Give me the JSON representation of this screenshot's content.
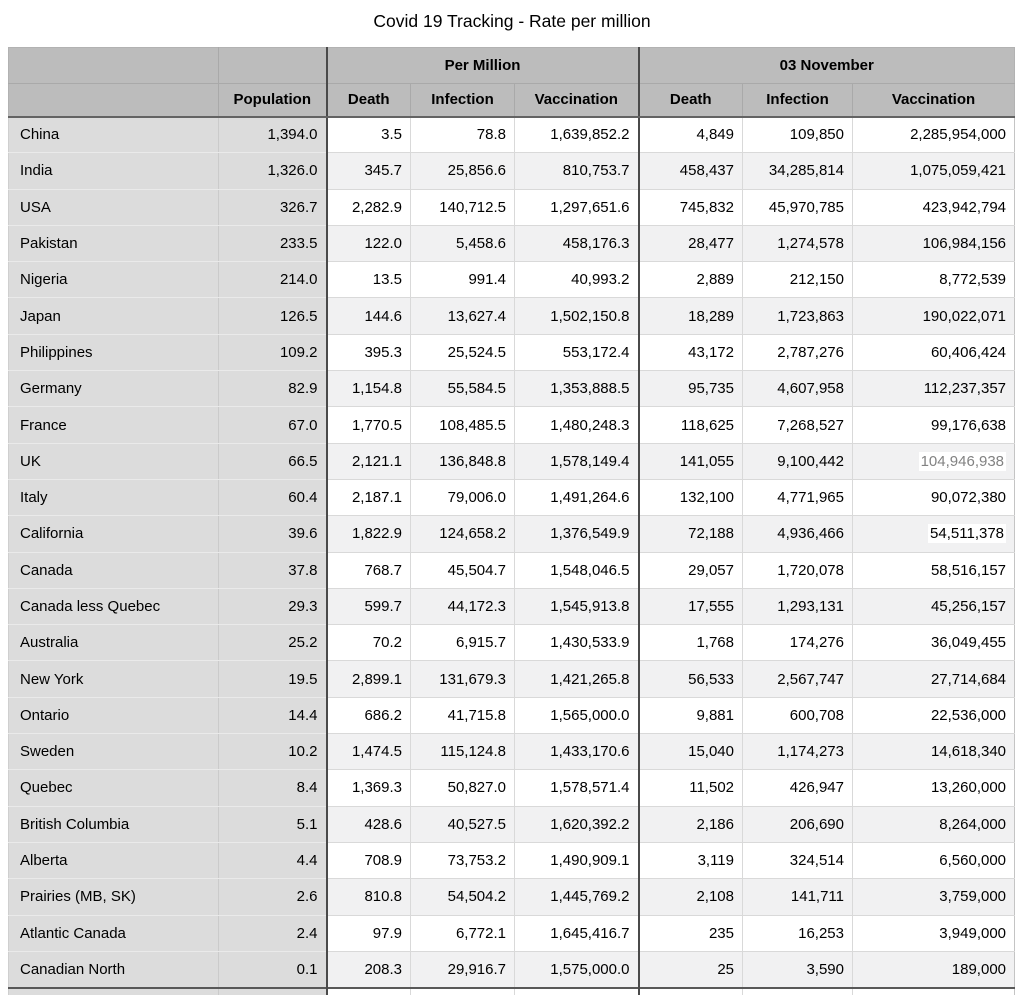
{
  "title": "Covid 19 Tracking - Rate per million",
  "table": {
    "group_headers": {
      "per_million": "Per Million",
      "date": "03 November"
    },
    "columns": [
      "Population",
      "Death",
      "Infection",
      "Vaccination",
      "Death",
      "Infection",
      "Vaccination"
    ],
    "rows": [
      {
        "label": "China",
        "population": "1,394.0",
        "pm_death": "3.5",
        "pm_infection": "78.8",
        "pm_vaccination": "1,639,852.2",
        "nov_death": "4,849",
        "nov_infection": "109,850",
        "nov_vaccination": "2,285,954,000"
      },
      {
        "label": "India",
        "population": "1,326.0",
        "pm_death": "345.7",
        "pm_infection": "25,856.6",
        "pm_vaccination": "810,753.7",
        "nov_death": "458,437",
        "nov_infection": "34,285,814",
        "nov_vaccination": "1,075,059,421"
      },
      {
        "label": "USA",
        "population": "326.7",
        "pm_death": "2,282.9",
        "pm_infection": "140,712.5",
        "pm_vaccination": "1,297,651.6",
        "nov_death": "745,832",
        "nov_infection": "45,970,785",
        "nov_vaccination": "423,942,794"
      },
      {
        "label": "Pakistan",
        "population": "233.5",
        "pm_death": "122.0",
        "pm_infection": "5,458.6",
        "pm_vaccination": "458,176.3",
        "nov_death": "28,477",
        "nov_infection": "1,274,578",
        "nov_vaccination": "106,984,156"
      },
      {
        "label": "Nigeria",
        "population": "214.0",
        "pm_death": "13.5",
        "pm_infection": "991.4",
        "pm_vaccination": "40,993.2",
        "nov_death": "2,889",
        "nov_infection": "212,150",
        "nov_vaccination": "8,772,539"
      },
      {
        "label": "Japan",
        "population": "126.5",
        "pm_death": "144.6",
        "pm_infection": "13,627.4",
        "pm_vaccination": "1,502,150.8",
        "nov_death": "18,289",
        "nov_infection": "1,723,863",
        "nov_vaccination": "190,022,071"
      },
      {
        "label": "Philippines",
        "population": "109.2",
        "pm_death": "395.3",
        "pm_infection": "25,524.5",
        "pm_vaccination": "553,172.4",
        "nov_death": "43,172",
        "nov_infection": "2,787,276",
        "nov_vaccination": "60,406,424"
      },
      {
        "label": "Germany",
        "population": "82.9",
        "pm_death": "1,154.8",
        "pm_infection": "55,584.5",
        "pm_vaccination": "1,353,888.5",
        "nov_death": "95,735",
        "nov_infection": "4,607,958",
        "nov_vaccination": "112,237,357"
      },
      {
        "label": "France",
        "population": "67.0",
        "pm_death": "1,770.5",
        "pm_infection": "108,485.5",
        "pm_vaccination": "1,480,248.3",
        "nov_death": "118,625",
        "nov_infection": "7,268,527",
        "nov_vaccination": "99,176,638"
      },
      {
        "label": "UK",
        "population": "66.5",
        "pm_death": "2,121.1",
        "pm_infection": "136,848.8",
        "pm_vaccination": "1,578,149.4",
        "nov_death": "141,055",
        "nov_infection": "9,100,442",
        "nov_vaccination": "104,946,938",
        "nov_vaccination_muted": true,
        "nov_vaccination_highlight": true
      },
      {
        "label": "Italy",
        "population": "60.4",
        "pm_death": "2,187.1",
        "pm_infection": "79,006.0",
        "pm_vaccination": "1,491,264.6",
        "nov_death": "132,100",
        "nov_infection": "4,771,965",
        "nov_vaccination": "90,072,380"
      },
      {
        "label": "California",
        "population": "39.6",
        "pm_death": "1,822.9",
        "pm_infection": "124,658.2",
        "pm_vaccination": "1,376,549.9",
        "nov_death": "72,188",
        "nov_infection": "4,936,466",
        "nov_vaccination": "54,511,378",
        "nov_vaccination_highlight": true
      },
      {
        "label": "Canada",
        "population": "37.8",
        "pm_death": "768.7",
        "pm_infection": "45,504.7",
        "pm_vaccination": "1,548,046.5",
        "nov_death": "29,057",
        "nov_infection": "1,720,078",
        "nov_vaccination": "58,516,157"
      },
      {
        "label": "Canada less Quebec",
        "population": "29.3",
        "pm_death": "599.7",
        "pm_infection": "44,172.3",
        "pm_vaccination": "1,545,913.8",
        "nov_death": "17,555",
        "nov_infection": "1,293,131",
        "nov_vaccination": "45,256,157"
      },
      {
        "label": "Australia",
        "population": "25.2",
        "pm_death": "70.2",
        "pm_infection": "6,915.7",
        "pm_vaccination": "1,430,533.9",
        "nov_death": "1,768",
        "nov_infection": "174,276",
        "nov_vaccination": "36,049,455"
      },
      {
        "label": "New York",
        "population": "19.5",
        "pm_death": "2,899.1",
        "pm_infection": "131,679.3",
        "pm_vaccination": "1,421,265.8",
        "nov_death": "56,533",
        "nov_infection": "2,567,747",
        "nov_vaccination": "27,714,684"
      },
      {
        "label": "Ontario",
        "population": "14.4",
        "pm_death": "686.2",
        "pm_infection": "41,715.8",
        "pm_vaccination": "1,565,000.0",
        "nov_death": "9,881",
        "nov_infection": "600,708",
        "nov_vaccination": "22,536,000"
      },
      {
        "label": "Sweden",
        "population": "10.2",
        "pm_death": "1,474.5",
        "pm_infection": "115,124.8",
        "pm_vaccination": "1,433,170.6",
        "nov_death": "15,040",
        "nov_infection": "1,174,273",
        "nov_vaccination": "14,618,340"
      },
      {
        "label": "Quebec",
        "population": "8.4",
        "pm_death": "1,369.3",
        "pm_infection": "50,827.0",
        "pm_vaccination": "1,578,571.4",
        "nov_death": "11,502",
        "nov_infection": "426,947",
        "nov_vaccination": "13,260,000"
      },
      {
        "label": "British Columbia",
        "population": "5.1",
        "pm_death": "428.6",
        "pm_infection": "40,527.5",
        "pm_vaccination": "1,620,392.2",
        "nov_death": "2,186",
        "nov_infection": "206,690",
        "nov_vaccination": "8,264,000"
      },
      {
        "label": "Alberta",
        "population": "4.4",
        "pm_death": "708.9",
        "pm_infection": "73,753.2",
        "pm_vaccination": "1,490,909.1",
        "nov_death": "3,119",
        "nov_infection": "324,514",
        "nov_vaccination": "6,560,000"
      },
      {
        "label": "Prairies (MB, SK)",
        "population": "2.6",
        "pm_death": "810.8",
        "pm_infection": "54,504.2",
        "pm_vaccination": "1,445,769.2",
        "nov_death": "2,108",
        "nov_infection": "141,711",
        "nov_vaccination": "3,759,000"
      },
      {
        "label": "Atlantic Canada",
        "population": "2.4",
        "pm_death": "97.9",
        "pm_infection": "6,772.1",
        "pm_vaccination": "1,645,416.7",
        "nov_death": "235",
        "nov_infection": "16,253",
        "nov_vaccination": "3,949,000"
      },
      {
        "label": "Canadian North",
        "population": "0.1",
        "pm_death": "208.3",
        "pm_infection": "29,916.7",
        "pm_vaccination": "1,575,000.0",
        "nov_death": "25",
        "nov_infection": "3,590",
        "nov_vaccination": "189,000"
      }
    ]
  },
  "colors": {
    "header_bg": "#bcbcbc",
    "frozen_column_bg": "#dcdcdc",
    "row_band_bg": "#f1f1f2",
    "dark_border": "#4a4a4a",
    "light_border": "#d9d9d9",
    "muted_text": "#828282",
    "highlight_bg": "#ffffff"
  }
}
